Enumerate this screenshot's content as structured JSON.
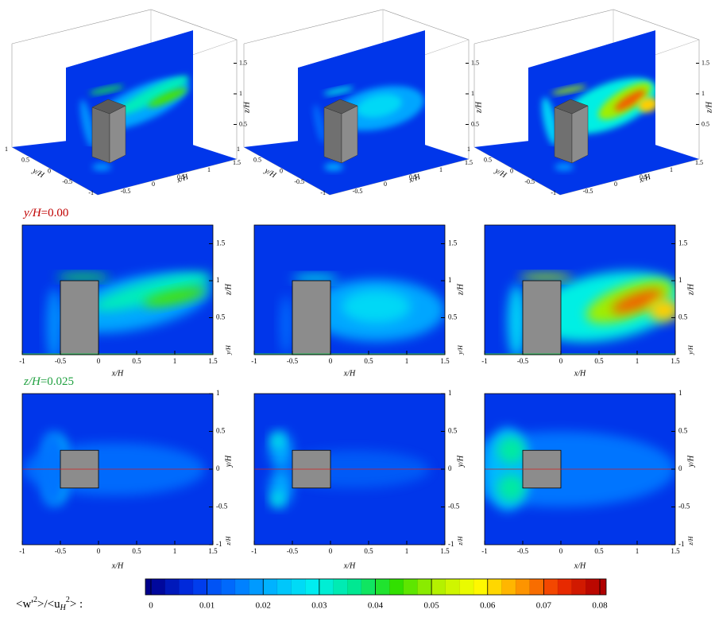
{
  "row_labels": {
    "middle": {
      "variable": "y/H",
      "value": "=0.00"
    },
    "bottom": {
      "variable": "z/H",
      "value": "=0.025"
    }
  },
  "axes": {
    "x_label": "x/H",
    "y_label": "y/H",
    "z_label": "z/H",
    "x_ticks": [
      -1,
      -0.5,
      0,
      0.5,
      1,
      1.5
    ],
    "y_ticks": [
      -1,
      -0.5,
      0,
      0.5,
      1
    ],
    "z_ticks": [
      0.5,
      1,
      1.5
    ]
  },
  "colorbar": {
    "label_parts": [
      "<w'",
      "2",
      ">/<u",
      "H",
      "2",
      "> :"
    ],
    "ticks": [
      0,
      0.01,
      0.02,
      0.03,
      0.04,
      0.05,
      0.06,
      0.07,
      0.08
    ]
  }
}
